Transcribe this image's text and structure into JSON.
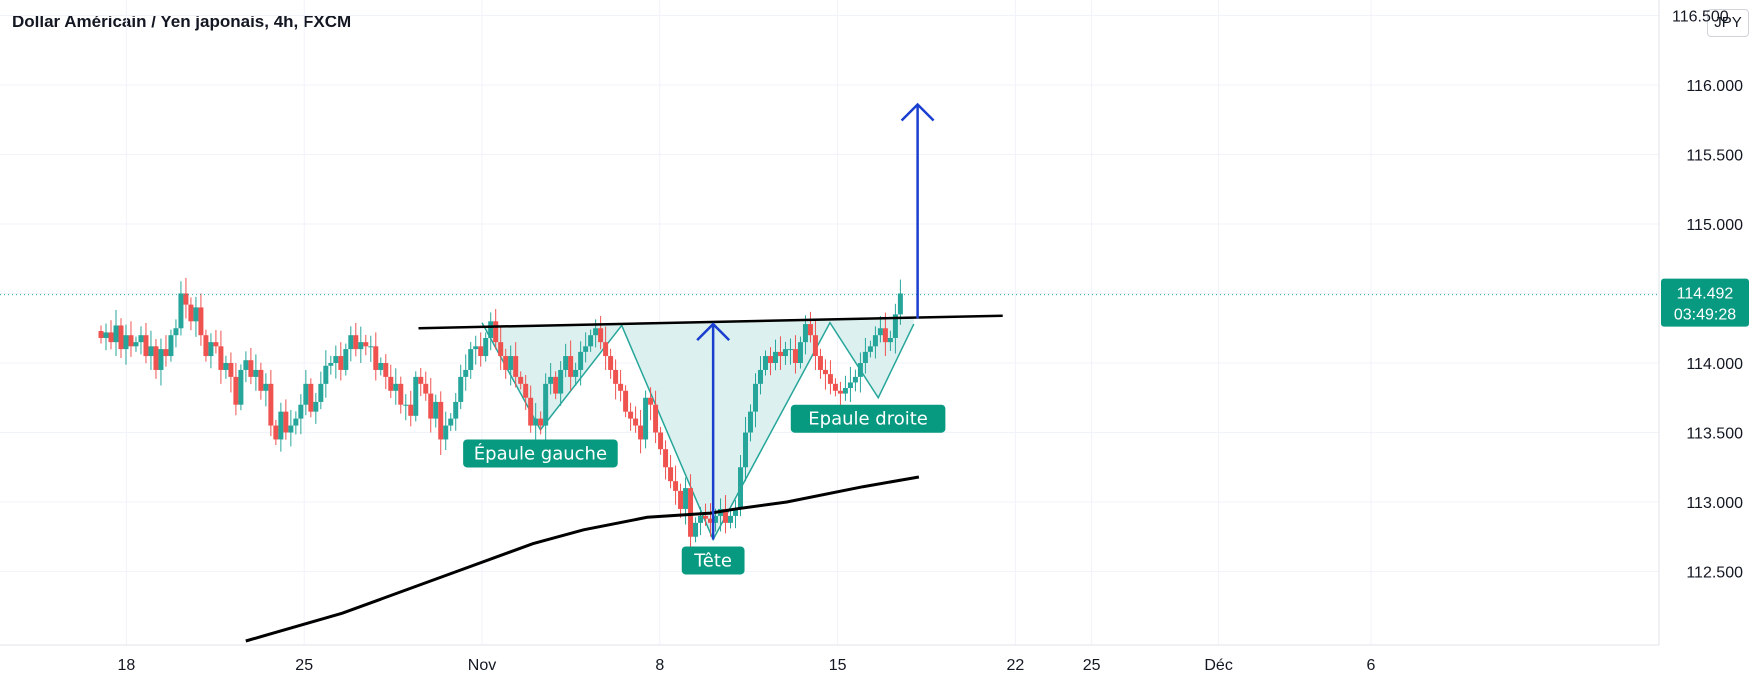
{
  "title": "Dollar Américain / Yen japonais, 4h, FXCM",
  "currency": "JPY",
  "price_label": {
    "value": "114.492",
    "timer": "03:49:28",
    "color": "#089981"
  },
  "colors": {
    "up": "#26a69a",
    "down": "#ef5350",
    "arrow": "#1a3fcf",
    "pattern_fill": "#d6efec",
    "pattern_line": "#26a69a",
    "label_bg": "#089981"
  },
  "chart_data": {
    "type": "candlestick",
    "ylim": [
      112.0,
      116.5
    ],
    "yticks": [
      "116.000",
      "115.500",
      "115.000",
      "114.000",
      "113.500",
      "113.000",
      "112.500"
    ],
    "top_tick_partial": "116.500",
    "xticks": [
      {
        "label": "18",
        "day": -13
      },
      {
        "label": "25",
        "day": -6
      },
      {
        "label": "Nov",
        "day": 1
      },
      {
        "label": "8",
        "day": 8
      },
      {
        "label": "15",
        "day": 15
      },
      {
        "label": "22",
        "day": 22
      },
      {
        "label": "25",
        "day": 25
      },
      {
        "label": "Déc",
        "day": 30
      },
      {
        "label": "6",
        "day": 36
      }
    ],
    "last_price": 114.492,
    "neckline": [
      [
        -1.5,
        114.25
      ],
      [
        21.5,
        114.34
      ]
    ],
    "moving_average": [
      [
        -8.3,
        112.0
      ],
      [
        -4.5,
        112.2
      ],
      [
        0,
        112.5
      ],
      [
        3,
        112.7
      ],
      [
        5,
        112.8
      ],
      [
        7.5,
        112.89
      ],
      [
        10,
        112.92
      ],
      [
        11,
        112.95
      ],
      [
        13,
        113.0
      ],
      [
        16,
        113.11
      ],
      [
        18.2,
        113.18
      ]
    ],
    "pattern_zigzag": [
      [
        1.0,
        114.29
      ],
      [
        3.3,
        113.52
      ],
      [
        6.5,
        114.27
      ],
      [
        10.1,
        112.73
      ],
      [
        14.7,
        114.29
      ],
      [
        16.6,
        113.75
      ],
      [
        18.0,
        114.28
      ]
    ],
    "arrows": [
      {
        "x": 10.1,
        "from": 112.73,
        "to": 114.28
      },
      {
        "x": 18.15,
        "from": 114.32,
        "to": 115.86
      }
    ],
    "annotations": [
      {
        "text": "Épaule gauche",
        "x": 3.3,
        "y": 113.45
      },
      {
        "text": "Tête",
        "x": 10.1,
        "y": 112.68
      },
      {
        "text": "Epaule droite",
        "x": 16.2,
        "y": 113.7
      }
    ],
    "closes": [
      114.18,
      114.22,
      114.15,
      114.27,
      114.1,
      114.2,
      114.12,
      114.15,
      114.2,
      114.05,
      114.12,
      113.95,
      114.1,
      114.05,
      114.2,
      114.25,
      114.5,
      114.42,
      114.3,
      114.4,
      114.2,
      114.05,
      114.15,
      114.12,
      113.95,
      114.0,
      113.9,
      113.7,
      113.95,
      114.02,
      113.9,
      113.95,
      113.8,
      113.85,
      113.55,
      113.45,
      113.65,
      113.5,
      113.55,
      113.6,
      113.7,
      113.85,
      113.65,
      113.72,
      113.85,
      113.98,
      114.0,
      114.05,
      113.95,
      114.1,
      114.2,
      114.1,
      114.15,
      114.12,
      114.12,
      113.95,
      114.0,
      113.9,
      113.8,
      113.85,
      113.7,
      113.7,
      113.62,
      113.9,
      113.85,
      113.78,
      113.6,
      113.72,
      113.45,
      113.55,
      113.6,
      113.72,
      113.9,
      113.95,
      114.1,
      114.12,
      114.05,
      114.18,
      114.3,
      114.15,
      114.05,
      113.95,
      114.05,
      113.9,
      113.85,
      113.75,
      113.55,
      113.6,
      113.55,
      113.85,
      113.9,
      113.78,
      113.95,
      114.05,
      113.9,
      113.95,
      114.08,
      114.12,
      114.2,
      114.25,
      114.15,
      114.05,
      113.95,
      113.85,
      113.8,
      113.65,
      113.6,
      113.55,
      113.45,
      113.75,
      113.7,
      113.5,
      113.38,
      113.25,
      113.15,
      113.08,
      112.95,
      113.1,
      112.75,
      112.85,
      112.9,
      112.88,
      112.85,
      112.9,
      112.95,
      112.85,
      112.9,
      112.95,
      113.25,
      113.5,
      113.65,
      113.85,
      113.95,
      114.05,
      114.0,
      114.08,
      114.05,
      114.1,
      114.1,
      114.0,
      114.15,
      114.28,
      114.2,
      114.05,
      113.95,
      113.92,
      113.85,
      113.8,
      113.78,
      113.82,
      113.86,
      113.9,
      114.0,
      114.08,
      114.12,
      114.2,
      114.25,
      114.15,
      114.18,
      114.35,
      114.5
    ],
    "candle_start_day": -14.0,
    "candle_step_day": 0.1967
  }
}
